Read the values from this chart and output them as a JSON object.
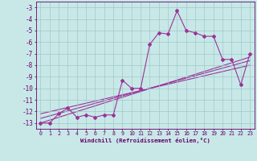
{
  "xlabel": "Windchill (Refroidissement éolien,°C)",
  "x_data": [
    0,
    1,
    2,
    3,
    4,
    5,
    6,
    7,
    8,
    9,
    10,
    11,
    12,
    13,
    14,
    15,
    16,
    17,
    18,
    19,
    20,
    21,
    22,
    23
  ],
  "y_data": [
    -13.0,
    -13.0,
    -12.2,
    -11.7,
    -12.5,
    -12.3,
    -12.5,
    -12.3,
    -12.3,
    -9.3,
    -10.0,
    -10.0,
    -6.2,
    -5.2,
    -5.3,
    -3.3,
    -5.0,
    -5.2,
    -5.5,
    -5.5,
    -7.5,
    -7.5,
    -9.7,
    -7.0
  ],
  "line_color": "#993399",
  "bg_color": "#c8e8e8",
  "grid_color": "#a0c8c8",
  "tick_color": "#660066",
  "ylim": [
    -13.5,
    -2.5
  ],
  "xlim": [
    -0.5,
    23.5
  ],
  "trend_lines": [
    [
      -13.0,
      -7.3
    ],
    [
      -12.6,
      -7.6
    ],
    [
      -12.2,
      -8.0
    ]
  ],
  "trend_x": [
    0,
    23
  ]
}
